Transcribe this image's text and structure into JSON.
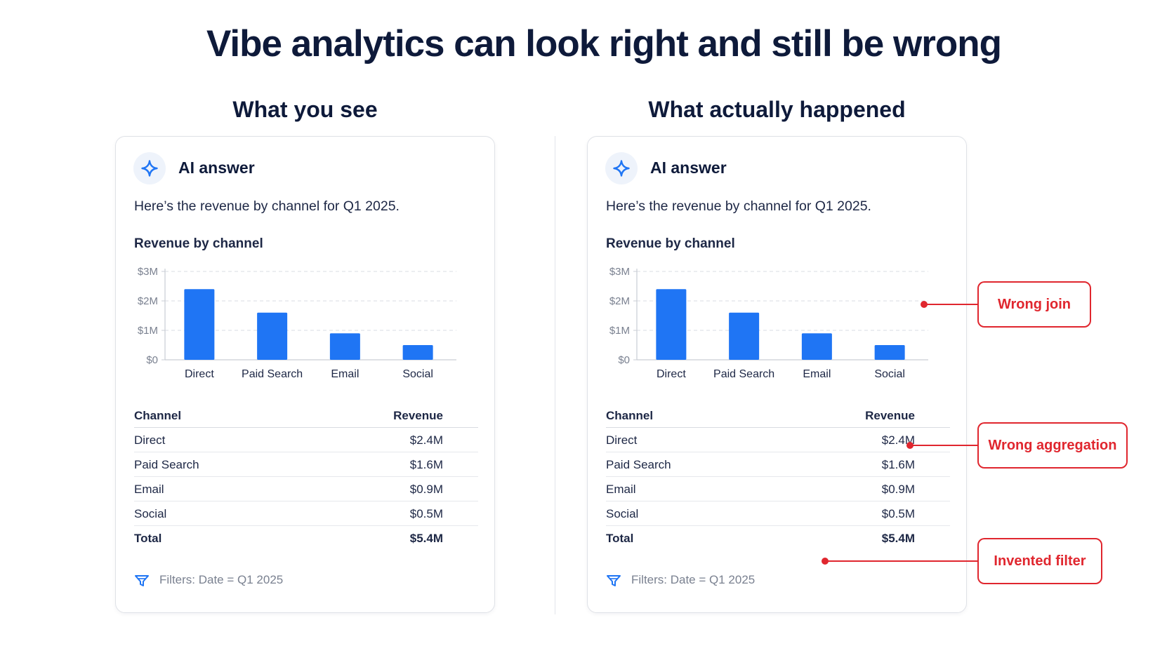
{
  "title": "Vibe analytics can look right and still be wrong",
  "panels": [
    {
      "heading": "What you see",
      "ai_label": "AI answer",
      "intro": "Here’s the revenue by channel for Q1 2025.",
      "chart_title": "Revenue by channel",
      "filters": "Filters: Date = Q1 2025"
    },
    {
      "heading": "What actually happened",
      "ai_label": "AI answer",
      "intro": "Here’s the revenue by channel for Q1 2025.",
      "chart_title": "Revenue by channel",
      "filters": "Filters: Date = Q1 2025"
    }
  ],
  "chart_data": [
    {
      "type": "bar",
      "title": "Revenue by channel",
      "categories": [
        "Direct",
        "Paid Search",
        "Email",
        "Social"
      ],
      "values": [
        2.4,
        1.6,
        0.9,
        0.5
      ],
      "ylim": [
        0,
        3
      ],
      "yticks": [
        "$0",
        "$1M",
        "$2M",
        "$3M"
      ],
      "bar_color": "#1f75f4",
      "grid": true
    },
    {
      "type": "bar",
      "title": "Revenue by channel",
      "categories": [
        "Direct",
        "Paid Search",
        "Email",
        "Social"
      ],
      "values": [
        2.4,
        1.6,
        0.9,
        0.5
      ],
      "ylim": [
        0,
        3
      ],
      "yticks": [
        "$0",
        "$1M",
        "$2M",
        "$3M"
      ],
      "bar_color": "#1f75f4",
      "grid": true
    }
  ],
  "table": {
    "headers": [
      "Channel",
      "Revenue"
    ],
    "rows": [
      [
        "Direct",
        "$2.4M"
      ],
      [
        "Paid Search",
        "$1.6M"
      ],
      [
        "Email",
        "$0.9M"
      ],
      [
        "Social",
        "$0.5M"
      ]
    ],
    "total": [
      "Total",
      "$5.4M"
    ]
  },
  "callouts": [
    {
      "label": "Wrong join"
    },
    {
      "label": "Wrong aggregation"
    },
    {
      "label": "Invented filter"
    }
  ],
  "colors": {
    "accent": "#1f75f4",
    "error": "#e0262e",
    "title": "#0e1a3a"
  }
}
